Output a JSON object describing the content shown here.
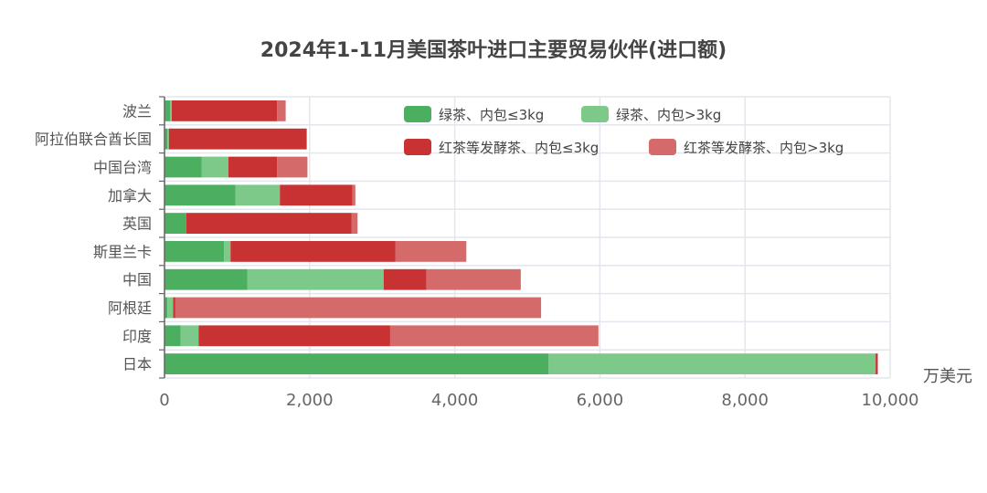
{
  "chart_data": {
    "type": "bar",
    "orientation": "horizontal",
    "stacked": true,
    "title": "2024年1-11月美国茶叶进口主要贸易伙伴(进口额)",
    "xlabel": "万美元",
    "ylabel": "",
    "xlim": [
      0,
      10000
    ],
    "x_ticks": [
      0,
      2000,
      4000,
      6000,
      8000,
      10000
    ],
    "x_tick_labels": [
      "0",
      "2,000",
      "4,000",
      "6,000",
      "8,000",
      "10,000"
    ],
    "grid": true,
    "legend_position": "top-right",
    "categories": [
      "波兰",
      "阿拉伯联合酋长国",
      "中国台湾",
      "加拿大",
      "英国",
      "斯里兰卡",
      "中国",
      "阿根廷",
      "印度",
      "日本"
    ],
    "series": [
      {
        "name": "绿茶、内包≤3kg",
        "color": "#4caf5f",
        "values": [
          80,
          40,
          510,
          980,
          300,
          820,
          1140,
          40,
          220,
          5290
        ]
      },
      {
        "name": "绿茶、内包>3kg",
        "color": "#7cc98a",
        "values": [
          20,
          20,
          370,
          610,
          0,
          90,
          1880,
          80,
          250,
          4510
        ]
      },
      {
        "name": "红茶等发酵茶、内包≤3kg",
        "color": "#c83232",
        "values": [
          1450,
          1900,
          670,
          1000,
          2280,
          2270,
          590,
          30,
          2640,
          30
        ]
      },
      {
        "name": "红茶等发酵茶、内包>3kg",
        "color": "#d46a6a",
        "values": [
          120,
          0,
          420,
          40,
          80,
          980,
          1300,
          5040,
          2870,
          0
        ]
      }
    ]
  }
}
